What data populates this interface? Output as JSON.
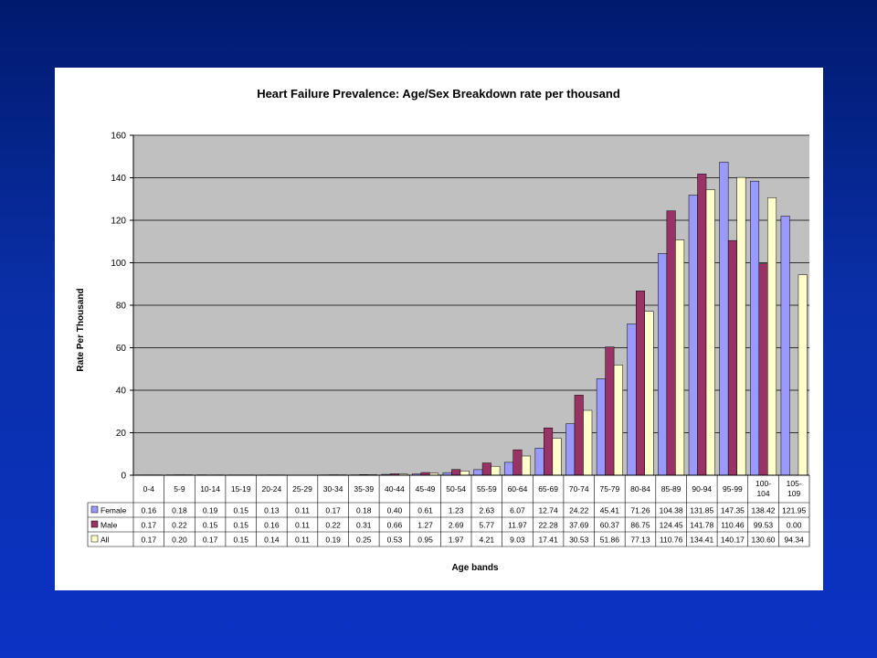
{
  "chart_data": {
    "type": "bar",
    "title": "Heart Failure Prevalence: Age/Sex Breakdown rate per thousand",
    "xlabel": "Age bands",
    "ylabel": "Rate Per Thousand",
    "ylim": [
      0,
      160
    ],
    "yticks": [
      0,
      20,
      40,
      60,
      80,
      100,
      120,
      140,
      160
    ],
    "grid": true,
    "legend": "data-table",
    "categories": [
      "0-4",
      "5-9",
      "10-14",
      "15-19",
      "20-24",
      "25-29",
      "30-34",
      "35-39",
      "40-44",
      "45-49",
      "50-54",
      "55-59",
      "60-64",
      "65-69",
      "70-74",
      "75-79",
      "80-84",
      "85-89",
      "90-94",
      "95-99",
      "100-104",
      "105-109"
    ],
    "category_lines": [
      [
        "0-4"
      ],
      [
        "5-9"
      ],
      [
        "10-14"
      ],
      [
        "15-19"
      ],
      [
        "20-24"
      ],
      [
        "25-29"
      ],
      [
        "30-34"
      ],
      [
        "35-39"
      ],
      [
        "40-44"
      ],
      [
        "45-49"
      ],
      [
        "50-54"
      ],
      [
        "55-59"
      ],
      [
        "60-64"
      ],
      [
        "65-69"
      ],
      [
        "70-74"
      ],
      [
        "75-79"
      ],
      [
        "80-84"
      ],
      [
        "85-89"
      ],
      [
        "90-94"
      ],
      [
        "95-99"
      ],
      [
        "100-",
        "104"
      ],
      [
        "105-",
        "109"
      ]
    ],
    "series": [
      {
        "name": "Female",
        "color": "#9999ff",
        "values": [
          0.16,
          0.18,
          0.19,
          0.15,
          0.13,
          0.11,
          0.17,
          0.18,
          0.4,
          0.61,
          1.23,
          2.63,
          6.07,
          12.74,
          24.22,
          45.41,
          71.26,
          104.38,
          131.85,
          147.35,
          138.42,
          121.95
        ],
        "labels": [
          "0.16",
          "0.18",
          "0.19",
          "0.15",
          "0.13",
          "0.11",
          "0.17",
          "0.18",
          "0.40",
          "0.61",
          "1.23",
          "2.63",
          "6.07",
          "12.74",
          "24.22",
          "45.41",
          "71.26",
          "104.38",
          "131.85",
          "147.35",
          "138.42",
          "121.95"
        ]
      },
      {
        "name": "Male",
        "color": "#993366",
        "values": [
          0.17,
          0.22,
          0.15,
          0.15,
          0.16,
          0.11,
          0.22,
          0.31,
          0.66,
          1.27,
          2.69,
          5.77,
          11.97,
          22.28,
          37.69,
          60.37,
          86.75,
          124.45,
          141.78,
          110.46,
          99.53,
          0.0
        ],
        "labels": [
          "0.17",
          "0.22",
          "0.15",
          "0.15",
          "0.16",
          "0.11",
          "0.22",
          "0.31",
          "0.66",
          "1.27",
          "2.69",
          "5.77",
          "11.97",
          "22.28",
          "37.69",
          "60.37",
          "86.75",
          "124.45",
          "141.78",
          "110.46",
          "99.53",
          "0.00"
        ]
      },
      {
        "name": "All",
        "color": "#ffffcc",
        "values": [
          0.17,
          0.2,
          0.17,
          0.15,
          0.14,
          0.11,
          0.19,
          0.25,
          0.53,
          0.95,
          1.97,
          4.21,
          9.03,
          17.41,
          30.53,
          51.86,
          77.13,
          110.76,
          134.41,
          140.17,
          130.6,
          94.34
        ],
        "labels": [
          "0.17",
          "0.20",
          "0.17",
          "0.15",
          "0.14",
          "0.11",
          "0.19",
          "0.25",
          "0.53",
          "0.95",
          "1.97",
          "4.21",
          "9.03",
          "17.41",
          "30.53",
          "51.86",
          "77.13",
          "110.76",
          "134.41",
          "140.17",
          "130.60",
          "94.34"
        ]
      }
    ],
    "colors": {
      "plot_background": "#c0c0c0",
      "gridline": "#000000",
      "slide_background": "#0b33c4"
    }
  }
}
